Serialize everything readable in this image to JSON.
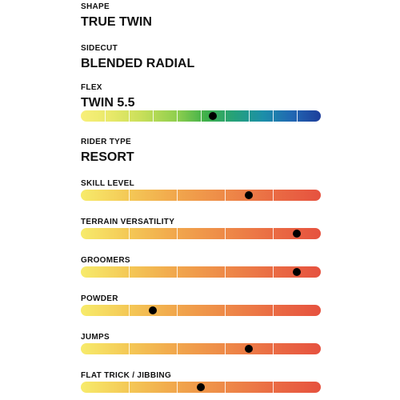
{
  "shape": {
    "label": "SHAPE",
    "value": "TRUE TWIN"
  },
  "sidecut": {
    "label": "SIDECUT",
    "value": "BLENDED RADIAL"
  },
  "flex": {
    "label": "FLEX",
    "value": "TWIN 5.5",
    "level": 0.55,
    "segments": 10
  },
  "rider_type": {
    "label": "RIDER TYPE",
    "value": "RESORT"
  },
  "ratings": [
    {
      "label": "SKILL LEVEL",
      "level": 0.7,
      "segments": 5
    },
    {
      "label": "TERRAIN VERSATILITY",
      "level": 0.9,
      "segments": 5
    },
    {
      "label": "GROOMERS",
      "level": 0.9,
      "segments": 5
    },
    {
      "label": "POWDER",
      "level": 0.3,
      "segments": 5
    },
    {
      "label": "JUMPS",
      "level": 0.7,
      "segments": 5
    },
    {
      "label": "FLAT TRICK / JIBBING",
      "level": 0.5,
      "segments": 5
    }
  ],
  "colors": {
    "text": "#111111",
    "marker": "#000000",
    "warm_start": "#f7eb6b",
    "warm_end": "#e6523f",
    "flex_start": "#f8ef7a",
    "flex_mid": "#3fb04a",
    "flex_end": "#1e3e9b"
  }
}
